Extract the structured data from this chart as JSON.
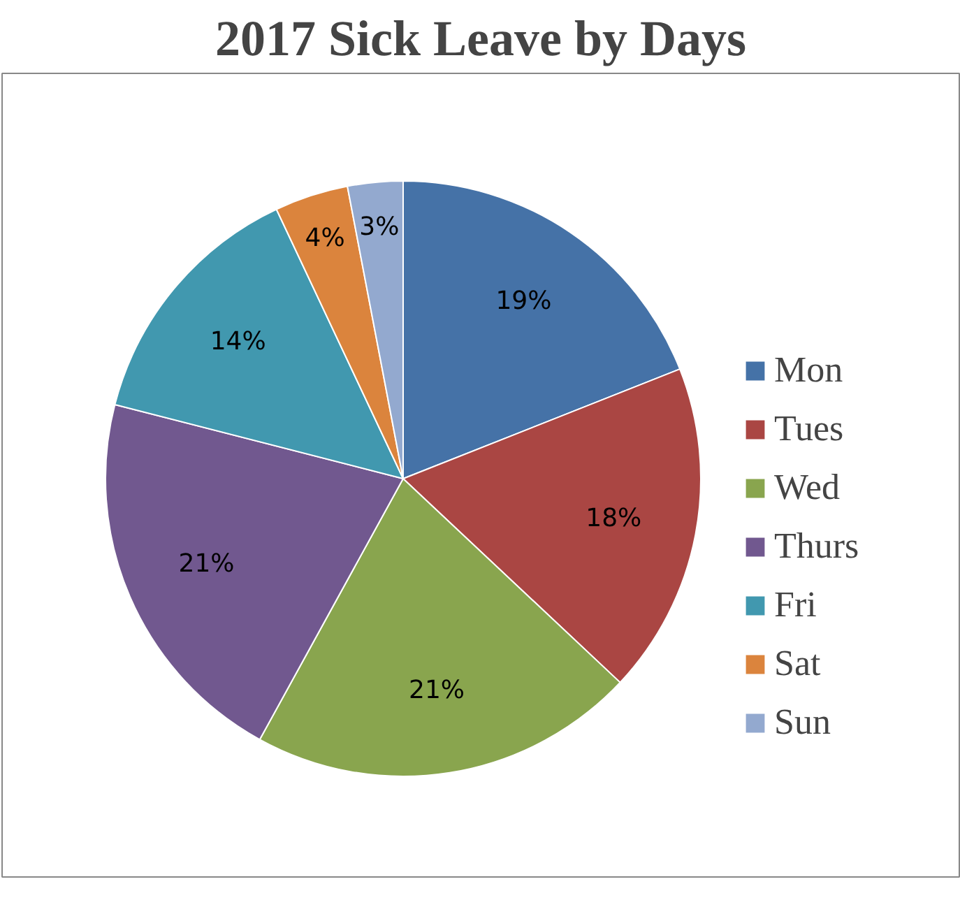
{
  "chart_data": {
    "type": "pie",
    "title": "2017 Sick Leave by Days",
    "categories": [
      "Mon",
      "Tues",
      "Wed",
      "Thurs",
      "Fri",
      "Sat",
      "Sun"
    ],
    "values": [
      19,
      18,
      21,
      21,
      14,
      4,
      3
    ],
    "value_labels": [
      "19%",
      "18%",
      "21%",
      "21%",
      "14%",
      "4%",
      "3%"
    ],
    "colors": [
      "#4572a7",
      "#aa4643",
      "#89a54e",
      "#71588f",
      "#4198af",
      "#db843d",
      "#93a9cf"
    ],
    "legend": "right"
  }
}
